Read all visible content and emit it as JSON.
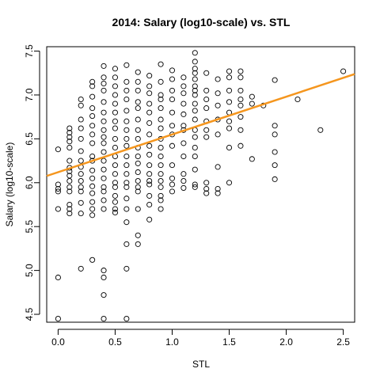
{
  "chart_data": {
    "type": "scatter",
    "title": "2014: Salary (log10-scale) vs. STL",
    "xlabel": "STL",
    "ylabel": "Salary (log10-scale)",
    "xlim": [
      -0.1,
      2.6
    ],
    "ylim": [
      4.41,
      7.55
    ],
    "x_ticks": [
      0.0,
      0.5,
      1.0,
      1.5,
      2.0,
      2.5
    ],
    "x_tick_labels": [
      "0.0",
      "0.5",
      "1.0",
      "1.5",
      "2.0",
      "2.5"
    ],
    "y_ticks": [
      4.5,
      5.0,
      5.5,
      6.0,
      6.5,
      7.0,
      7.5
    ],
    "y_tick_labels": [
      "4.5",
      "5.0",
      "5.5",
      "6.0",
      "6.5",
      "7.0",
      "7.5"
    ],
    "grid": false,
    "point_color": "#000000",
    "regression_line": {
      "intercept": 6.12,
      "slope": 0.43,
      "color": "#F5961E"
    },
    "points": [
      [
        0.0,
        6.38
      ],
      [
        0.0,
        5.98
      ],
      [
        0.0,
        5.93
      ],
      [
        0.0,
        5.9
      ],
      [
        0.0,
        5.7
      ],
      [
        0.0,
        4.92
      ],
      [
        0.0,
        4.45
      ],
      [
        0.1,
        6.62
      ],
      [
        0.1,
        6.57
      ],
      [
        0.1,
        6.52
      ],
      [
        0.1,
        6.47
      ],
      [
        0.1,
        6.4
      ],
      [
        0.1,
        6.25
      ],
      [
        0.1,
        6.17
      ],
      [
        0.1,
        6.13
      ],
      [
        0.1,
        6.08
      ],
      [
        0.1,
        6.02
      ],
      [
        0.1,
        5.95
      ],
      [
        0.1,
        5.9
      ],
      [
        0.1,
        5.75
      ],
      [
        0.1,
        5.7
      ],
      [
        0.1,
        5.65
      ],
      [
        0.2,
        6.95
      ],
      [
        0.2,
        6.88
      ],
      [
        0.2,
        6.72
      ],
      [
        0.2,
        6.62
      ],
      [
        0.2,
        6.5
      ],
      [
        0.2,
        6.36
      ],
      [
        0.2,
        6.25
      ],
      [
        0.2,
        6.18
      ],
      [
        0.2,
        6.1
      ],
      [
        0.2,
        6.02
      ],
      [
        0.2,
        5.95
      ],
      [
        0.2,
        5.9
      ],
      [
        0.2,
        5.77
      ],
      [
        0.2,
        5.65
      ],
      [
        0.2,
        5.02
      ],
      [
        0.3,
        7.15
      ],
      [
        0.3,
        7.1
      ],
      [
        0.3,
        6.98
      ],
      [
        0.3,
        6.85
      ],
      [
        0.3,
        6.76
      ],
      [
        0.3,
        6.65
      ],
      [
        0.3,
        6.55
      ],
      [
        0.3,
        6.45
      ],
      [
        0.3,
        6.3
      ],
      [
        0.3,
        6.25
      ],
      [
        0.3,
        6.14
      ],
      [
        0.3,
        6.05
      ],
      [
        0.3,
        5.96
      ],
      [
        0.3,
        5.88
      ],
      [
        0.3,
        5.78
      ],
      [
        0.3,
        5.7
      ],
      [
        0.3,
        5.63
      ],
      [
        0.3,
        5.12
      ],
      [
        0.4,
        7.33
      ],
      [
        0.4,
        7.2
      ],
      [
        0.4,
        7.13
      ],
      [
        0.4,
        7.05
      ],
      [
        0.4,
        6.92
      ],
      [
        0.4,
        6.8
      ],
      [
        0.4,
        6.7
      ],
      [
        0.4,
        6.6
      ],
      [
        0.4,
        6.52
      ],
      [
        0.4,
        6.45
      ],
      [
        0.4,
        6.35
      ],
      [
        0.4,
        6.25
      ],
      [
        0.4,
        6.15
      ],
      [
        0.4,
        6.05
      ],
      [
        0.4,
        5.95
      ],
      [
        0.4,
        5.9
      ],
      [
        0.4,
        5.8
      ],
      [
        0.4,
        5.7
      ],
      [
        0.4,
        5.0
      ],
      [
        0.4,
        4.92
      ],
      [
        0.4,
        4.72
      ],
      [
        0.4,
        4.45
      ],
      [
        0.5,
        7.3
      ],
      [
        0.5,
        7.2
      ],
      [
        0.5,
        7.1
      ],
      [
        0.5,
        7.0
      ],
      [
        0.5,
        6.9
      ],
      [
        0.5,
        6.8
      ],
      [
        0.5,
        6.7
      ],
      [
        0.5,
        6.62
      ],
      [
        0.5,
        6.5
      ],
      [
        0.5,
        6.4
      ],
      [
        0.5,
        6.3
      ],
      [
        0.5,
        6.2
      ],
      [
        0.5,
        6.1
      ],
      [
        0.5,
        6.0
      ],
      [
        0.5,
        5.95
      ],
      [
        0.5,
        5.85
      ],
      [
        0.5,
        5.78
      ],
      [
        0.5,
        5.7
      ],
      [
        0.5,
        5.66
      ],
      [
        0.6,
        7.34
      ],
      [
        0.6,
        7.15
      ],
      [
        0.6,
        7.05
      ],
      [
        0.6,
        6.95
      ],
      [
        0.6,
        6.82
      ],
      [
        0.6,
        6.7
      ],
      [
        0.6,
        6.6
      ],
      [
        0.6,
        6.5
      ],
      [
        0.6,
        6.42
      ],
      [
        0.6,
        6.3
      ],
      [
        0.6,
        6.2
      ],
      [
        0.6,
        6.1
      ],
      [
        0.6,
        6.0
      ],
      [
        0.6,
        5.95
      ],
      [
        0.6,
        5.82
      ],
      [
        0.6,
        5.7
      ],
      [
        0.6,
        5.55
      ],
      [
        0.6,
        5.3
      ],
      [
        0.6,
        5.02
      ],
      [
        0.6,
        4.45
      ],
      [
        0.7,
        7.26
      ],
      [
        0.7,
        7.15
      ],
      [
        0.7,
        7.05
      ],
      [
        0.7,
        6.92
      ],
      [
        0.7,
        6.85
      ],
      [
        0.7,
        6.72
      ],
      [
        0.7,
        6.6
      ],
      [
        0.7,
        6.5
      ],
      [
        0.7,
        6.4
      ],
      [
        0.7,
        6.3
      ],
      [
        0.7,
        6.22
      ],
      [
        0.7,
        6.12
      ],
      [
        0.7,
        6.02
      ],
      [
        0.7,
        5.95
      ],
      [
        0.7,
        5.9
      ],
      [
        0.7,
        5.7
      ],
      [
        0.7,
        5.4
      ],
      [
        0.7,
        5.3
      ],
      [
        0.8,
        7.22
      ],
      [
        0.8,
        7.1
      ],
      [
        0.8,
        7.02
      ],
      [
        0.8,
        6.9
      ],
      [
        0.8,
        6.8
      ],
      [
        0.8,
        6.68
      ],
      [
        0.8,
        6.55
      ],
      [
        0.8,
        6.42
      ],
      [
        0.8,
        6.32
      ],
      [
        0.8,
        6.2
      ],
      [
        0.8,
        6.1
      ],
      [
        0.8,
        6.02
      ],
      [
        0.8,
        5.98
      ],
      [
        0.8,
        5.85
      ],
      [
        0.8,
        5.75
      ],
      [
        0.8,
        5.58
      ],
      [
        0.9,
        7.35
      ],
      [
        0.9,
        7.15
      ],
      [
        0.9,
        7.0
      ],
      [
        0.9,
        6.95
      ],
      [
        0.9,
        6.85
      ],
      [
        0.9,
        6.72
      ],
      [
        0.9,
        6.62
      ],
      [
        0.9,
        6.5
      ],
      [
        0.9,
        6.4
      ],
      [
        0.9,
        6.3
      ],
      [
        0.9,
        6.2
      ],
      [
        0.9,
        6.1
      ],
      [
        0.9,
        6.02
      ],
      [
        0.9,
        5.95
      ],
      [
        0.9,
        5.85
      ],
      [
        0.9,
        5.8
      ],
      [
        0.9,
        5.7
      ],
      [
        1.0,
        7.28
      ],
      [
        1.0,
        7.18
      ],
      [
        1.0,
        7.05
      ],
      [
        1.0,
        6.95
      ],
      [
        1.0,
        6.8
      ],
      [
        1.0,
        6.65
      ],
      [
        1.0,
        6.55
      ],
      [
        1.0,
        6.42
      ],
      [
        1.0,
        6.2
      ],
      [
        1.0,
        6.05
      ],
      [
        1.0,
        5.98
      ],
      [
        1.0,
        5.9
      ],
      [
        1.1,
        7.2
      ],
      [
        1.1,
        7.1
      ],
      [
        1.1,
        7.02
      ],
      [
        1.1,
        6.9
      ],
      [
        1.1,
        6.78
      ],
      [
        1.1,
        6.65
      ],
      [
        1.1,
        6.6
      ],
      [
        1.1,
        6.45
      ],
      [
        1.1,
        6.3
      ],
      [
        1.1,
        6.1
      ],
      [
        1.1,
        6.02
      ],
      [
        1.1,
        5.94
      ],
      [
        1.2,
        7.48
      ],
      [
        1.2,
        7.38
      ],
      [
        1.2,
        7.3
      ],
      [
        1.2,
        7.25
      ],
      [
        1.2,
        7.18
      ],
      [
        1.2,
        7.1
      ],
      [
        1.2,
        7.05
      ],
      [
        1.2,
        7.0
      ],
      [
        1.2,
        6.9
      ],
      [
        1.2,
        6.82
      ],
      [
        1.2,
        6.72
      ],
      [
        1.2,
        6.6
      ],
      [
        1.2,
        6.52
      ],
      [
        1.2,
        6.4
      ],
      [
        1.2,
        6.3
      ],
      [
        1.2,
        6.15
      ],
      [
        1.2,
        5.98
      ],
      [
        1.2,
        5.95
      ],
      [
        1.3,
        7.25
      ],
      [
        1.3,
        7.05
      ],
      [
        1.3,
        6.95
      ],
      [
        1.3,
        6.85
      ],
      [
        1.3,
        6.7
      ],
      [
        1.3,
        6.6
      ],
      [
        1.3,
        6.52
      ],
      [
        1.3,
        6.0
      ],
      [
        1.3,
        5.93
      ],
      [
        1.3,
        5.88
      ],
      [
        1.4,
        7.18
      ],
      [
        1.4,
        7.02
      ],
      [
        1.4,
        6.88
      ],
      [
        1.4,
        6.72
      ],
      [
        1.4,
        6.55
      ],
      [
        1.4,
        6.18
      ],
      [
        1.4,
        5.93
      ],
      [
        1.4,
        5.88
      ],
      [
        1.5,
        7.27
      ],
      [
        1.5,
        7.2
      ],
      [
        1.5,
        7.05
      ],
      [
        1.5,
        6.92
      ],
      [
        1.5,
        6.8
      ],
      [
        1.5,
        6.7
      ],
      [
        1.5,
        6.62
      ],
      [
        1.5,
        6.4
      ],
      [
        1.5,
        6.0
      ],
      [
        1.6,
        7.27
      ],
      [
        1.6,
        7.2
      ],
      [
        1.6,
        7.05
      ],
      [
        1.6,
        6.95
      ],
      [
        1.6,
        6.88
      ],
      [
        1.6,
        6.75
      ],
      [
        1.6,
        6.6
      ],
      [
        1.6,
        6.42
      ],
      [
        1.7,
        6.98
      ],
      [
        1.7,
        6.9
      ],
      [
        1.7,
        6.27
      ],
      [
        1.8,
        6.88
      ],
      [
        1.9,
        7.17
      ],
      [
        1.9,
        6.65
      ],
      [
        1.9,
        6.55
      ],
      [
        1.9,
        6.35
      ],
      [
        1.9,
        6.2
      ],
      [
        1.9,
        6.04
      ],
      [
        2.1,
        6.95
      ],
      [
        2.3,
        6.6
      ],
      [
        2.5,
        7.27
      ]
    ]
  }
}
